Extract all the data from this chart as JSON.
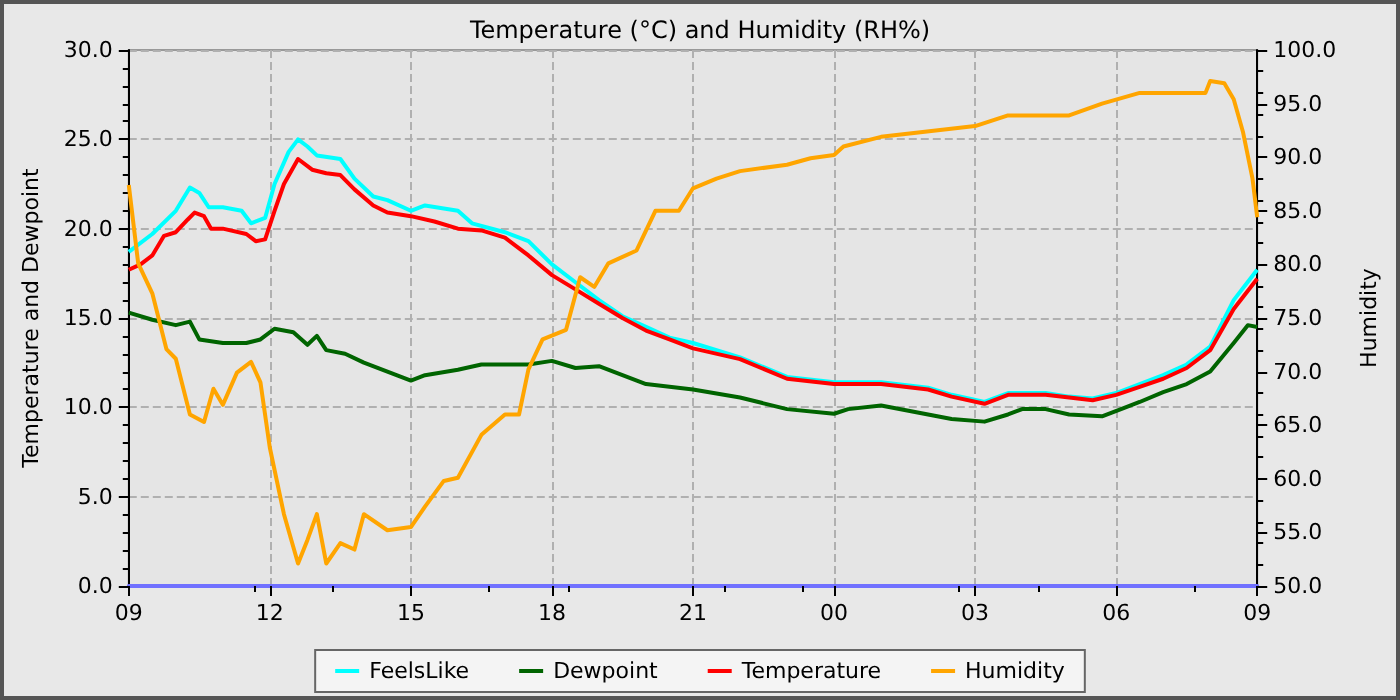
{
  "chart_data": {
    "type": "line",
    "title": "Temperature (°C) and Humidity (RH%)",
    "ylabel": "Temperature and Dewpoint",
    "y2label": "Humidity",
    "xlim": [
      9,
      33
    ],
    "xticks": [
      {
        "value": 9,
        "label": "09"
      },
      {
        "value": 12,
        "label": "12"
      },
      {
        "value": 15,
        "label": "15"
      },
      {
        "value": 18,
        "label": "18"
      },
      {
        "value": 21,
        "label": "21"
      },
      {
        "value": 24,
        "label": "00"
      },
      {
        "value": 27,
        "label": "03"
      },
      {
        "value": 30,
        "label": "06"
      },
      {
        "value": 33,
        "label": "09"
      }
    ],
    "ylim": [
      0,
      30
    ],
    "yticks": [
      {
        "value": 0,
        "label": "0.0"
      },
      {
        "value": 5,
        "label": "5.0"
      },
      {
        "value": 10,
        "label": "10.0"
      },
      {
        "value": 15,
        "label": "15.0"
      },
      {
        "value": 20,
        "label": "20.0"
      },
      {
        "value": 25,
        "label": "25.0"
      },
      {
        "value": 30,
        "label": "30.0"
      }
    ],
    "y2lim": [
      50,
      100
    ],
    "y2ticks": [
      {
        "value": 50,
        "label": "50.0"
      },
      {
        "value": 55,
        "label": "55.0"
      },
      {
        "value": 60,
        "label": "60.0"
      },
      {
        "value": 65,
        "label": "65.0"
      },
      {
        "value": 70,
        "label": "70.0"
      },
      {
        "value": 75,
        "label": "75.0"
      },
      {
        "value": 80,
        "label": "80.0"
      },
      {
        "value": 85,
        "label": "85.0"
      },
      {
        "value": 90,
        "label": "90.0"
      },
      {
        "value": 95,
        "label": "95.0"
      },
      {
        "value": 100,
        "label": "100.0"
      }
    ],
    "grid": true,
    "legend": "bottom",
    "marker": "none",
    "line_style": "solid",
    "series": [
      {
        "name": "FeelsLike",
        "color": "#00ffff",
        "x": [
          9,
          9.5,
          10,
          10.3,
          10.5,
          10.7,
          11,
          11.4,
          11.6,
          11.9,
          12.1,
          12.4,
          12.6,
          12.8,
          13,
          13.5,
          13.8,
          14.2,
          14.5,
          15,
          15.3,
          16,
          16.3,
          17,
          17.5,
          18,
          18.5,
          19,
          19.5,
          20,
          20.5,
          21,
          22,
          23,
          24,
          25,
          26,
          26.5,
          27.2,
          27.7,
          28.5,
          29,
          29.5,
          30,
          30.5,
          31,
          31.5,
          32,
          32.5,
          33
        ],
        "values": [
          18.7,
          19.7,
          21.0,
          22.3,
          22.0,
          21.2,
          21.2,
          21.0,
          20.3,
          20.6,
          22.5,
          24.3,
          25.0,
          24.6,
          24.1,
          23.9,
          22.8,
          21.8,
          21.6,
          21.0,
          21.3,
          21.0,
          20.3,
          19.8,
          19.3,
          18.0,
          17.0,
          16.0,
          15.1,
          14.5,
          13.9,
          13.6,
          12.8,
          11.7,
          11.4,
          11.4,
          11.1,
          10.7,
          10.3,
          10.8,
          10.8,
          10.6,
          10.5,
          10.8,
          11.3,
          11.8,
          12.4,
          13.4,
          16.0,
          17.7
        ]
      },
      {
        "name": "Dewpoint",
        "color": "#006400",
        "x": [
          9,
          9.5,
          10,
          10.3,
          10.5,
          11,
          11.5,
          11.8,
          12.1,
          12.5,
          12.8,
          13,
          13.2,
          13.6,
          14,
          14.5,
          15,
          15.3,
          16,
          16.5,
          17.5,
          18,
          18.5,
          19,
          19.5,
          20,
          21,
          22,
          23,
          24,
          24.3,
          25,
          26,
          26.5,
          27.2,
          27.7,
          28,
          28.5,
          29,
          29.7,
          30.2,
          30.5,
          31,
          31.5,
          32,
          32.5,
          32.8,
          33
        ],
        "values": [
          15.3,
          14.9,
          14.6,
          14.8,
          13.8,
          13.6,
          13.6,
          13.8,
          14.4,
          14.2,
          13.5,
          14.0,
          13.2,
          13.0,
          12.5,
          12.0,
          11.5,
          11.8,
          12.1,
          12.4,
          12.4,
          12.6,
          12.2,
          12.3,
          11.8,
          11.3,
          11.0,
          10.55,
          9.9,
          9.64,
          9.9,
          10.1,
          9.6,
          9.35,
          9.2,
          9.6,
          9.9,
          9.9,
          9.6,
          9.5,
          10.0,
          10.3,
          10.85,
          11.3,
          12.0,
          13.6,
          14.6,
          14.5
        ]
      },
      {
        "name": "Temperature",
        "color": "#ff0000",
        "x": [
          9,
          9.25,
          9.5,
          9.75,
          10,
          10.25,
          10.4,
          10.6,
          10.75,
          11,
          11.5,
          11.7,
          11.9,
          12.1,
          12.3,
          12.6,
          12.9,
          13.2,
          13.5,
          13.8,
          14.2,
          14.5,
          15,
          15.5,
          16,
          16.5,
          17,
          17.5,
          18,
          18.5,
          19,
          19.5,
          20,
          20.5,
          21,
          22,
          23,
          24,
          25,
          26,
          26.5,
          27.2,
          27.7,
          28.5,
          29,
          29.5,
          30,
          30.5,
          31,
          31.5,
          32,
          32.5,
          33
        ],
        "values": [
          17.7,
          18.0,
          18.5,
          19.6,
          19.8,
          20.5,
          20.9,
          20.7,
          20.0,
          20.0,
          19.7,
          19.3,
          19.4,
          21.0,
          22.5,
          23.9,
          23.3,
          23.1,
          23.0,
          22.2,
          21.3,
          20.9,
          20.7,
          20.4,
          20.0,
          19.9,
          19.5,
          18.5,
          17.4,
          16.6,
          15.8,
          15.0,
          14.3,
          13.8,
          13.3,
          12.7,
          11.6,
          11.3,
          11.3,
          11.0,
          10.6,
          10.2,
          10.7,
          10.7,
          10.55,
          10.4,
          10.7,
          11.15,
          11.6,
          12.2,
          13.2,
          15.5,
          17.2
        ]
      },
      {
        "name": "Humidity",
        "color": "#ffa500",
        "axis": "y2",
        "x": [
          9,
          9.2,
          9.5,
          9.8,
          10,
          10.3,
          10.6,
          10.8,
          11,
          11.3,
          11.6,
          11.8,
          12,
          12.3,
          12.6,
          12.8,
          13,
          13.2,
          13.5,
          13.8,
          14,
          14.5,
          15,
          15.3,
          15.7,
          16,
          16.5,
          17,
          17.3,
          17.5,
          17.8,
          18.3,
          18.6,
          18.9,
          19.2,
          19.8,
          20.2,
          20.7,
          21,
          21.5,
          22,
          23,
          23.5,
          24,
          24.2,
          25,
          27,
          27.7,
          29,
          29.7,
          30.5,
          31.9,
          32,
          32.3,
          32.5,
          32.7,
          32.9,
          33
        ],
        "values": [
          87.4,
          80.1,
          77.3,
          72.1,
          71.2,
          66,
          65.3,
          68.4,
          66.9,
          69.9,
          70.9,
          69,
          62.9,
          56.7,
          52.1,
          54.3,
          56.7,
          52.1,
          54,
          53.4,
          56.7,
          55.2,
          55.5,
          57.4,
          59.8,
          60.1,
          64.1,
          66,
          66,
          70.2,
          73,
          73.9,
          78.8,
          77.9,
          80.1,
          81.3,
          85,
          85,
          87.1,
          88,
          88.7,
          89.3,
          89.9,
          90.2,
          91,
          91.9,
          92.9,
          93.9,
          93.9,
          95,
          96,
          96,
          97.1,
          96.9,
          95.4,
          92.3,
          88,
          84.4
        ]
      }
    ]
  }
}
